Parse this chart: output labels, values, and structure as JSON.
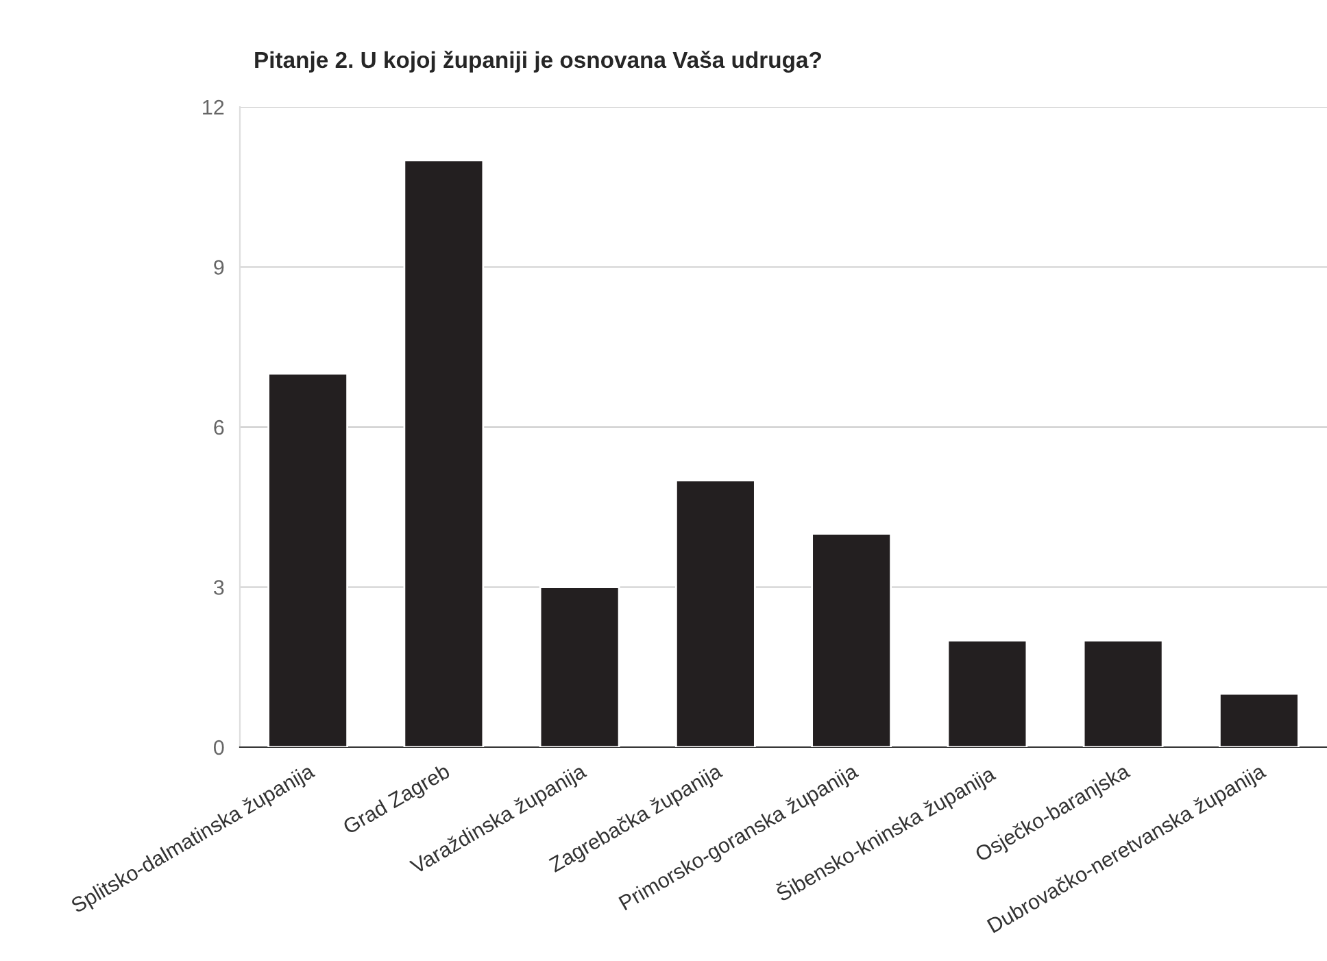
{
  "chart_data": {
    "type": "bar",
    "title": "Pitanje 2. U kojoj županiji je osnovana Vaša udruga?",
    "categories": [
      "Splitsko-dalmatinska županija",
      "Grad Zagreb",
      "Varaždinska županija",
      "Zagrebačka županija",
      "Primorsko-goranska županija",
      "Šibensko-kninska županija",
      "Osječko-baranjska",
      "Dubrovačko-neretvanska županija"
    ],
    "values": [
      7,
      11,
      3,
      5,
      4,
      2,
      2,
      1
    ],
    "color": "#231f20",
    "ylim": [
      0,
      12
    ],
    "yticks": [
      0,
      3,
      6,
      9,
      12
    ],
    "grid": "y",
    "legend": false
  }
}
